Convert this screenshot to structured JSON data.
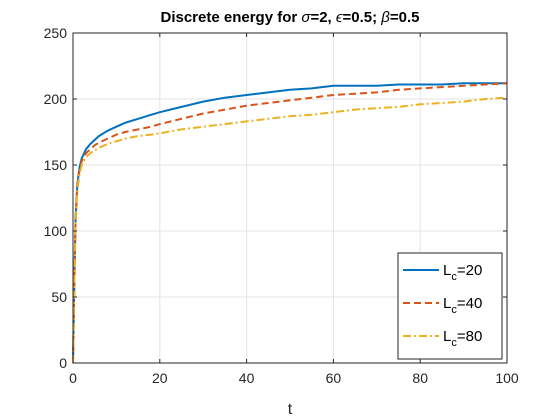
{
  "chart_data": {
    "type": "line",
    "title_parts": [
      "Discrete energy for ",
      "σ",
      "=2, ",
      "ϵ",
      "=0.5; ",
      "β",
      "=0.5"
    ],
    "xlabel": "t",
    "ylabel": "",
    "xlim": [
      0,
      100
    ],
    "ylim": [
      0,
      250
    ],
    "xticks": [
      0,
      20,
      40,
      60,
      80,
      100
    ],
    "yticks": [
      0,
      50,
      100,
      150,
      200,
      250
    ],
    "grid": true,
    "legend_position": "bottom-right",
    "series": [
      {
        "name_main": "L",
        "name_sub": "c",
        "name_rest": "=20",
        "color": "#0072BD",
        "style": "solid",
        "x": [
          0,
          0.3,
          0.6,
          1,
          1.5,
          2,
          3,
          4,
          5,
          6,
          8,
          10,
          12,
          15,
          18,
          20,
          25,
          30,
          35,
          40,
          45,
          50,
          55,
          60,
          65,
          70,
          75,
          80,
          85,
          90,
          95,
          100
        ],
        "y": [
          0,
          60,
          110,
          135,
          148,
          155,
          162,
          166,
          169,
          172,
          176,
          179,
          182,
          185,
          188,
          190,
          194,
          198,
          201,
          203,
          205,
          207,
          208,
          210,
          210,
          210,
          211,
          211,
          211,
          212,
          212,
          212
        ]
      },
      {
        "name_main": "L",
        "name_sub": "c",
        "name_rest": "=40",
        "color": "#D95319",
        "style": "dashed",
        "x": [
          0,
          0.3,
          0.6,
          1,
          1.5,
          2,
          3,
          4,
          5,
          6,
          8,
          10,
          12,
          15,
          18,
          20,
          25,
          30,
          35,
          40,
          45,
          50,
          55,
          60,
          65,
          70,
          75,
          80,
          85,
          90,
          95,
          100
        ],
        "y": [
          0,
          58,
          108,
          133,
          146,
          153,
          159,
          162,
          165,
          167,
          170,
          173,
          175,
          177,
          179,
          181,
          185,
          189,
          192,
          195,
          197,
          199,
          201,
          203,
          204,
          205,
          207,
          208,
          209,
          210,
          211,
          212
        ]
      },
      {
        "name_main": "L",
        "name_sub": "c",
        "name_rest": "=80",
        "color": "#EDB120",
        "style": "dashdot",
        "x": [
          0,
          0.3,
          0.6,
          1,
          1.5,
          2,
          3,
          4,
          5,
          6,
          8,
          10,
          12,
          15,
          18,
          20,
          25,
          30,
          35,
          40,
          45,
          50,
          55,
          60,
          65,
          70,
          75,
          80,
          85,
          90,
          95,
          100
        ],
        "y": [
          0,
          55,
          105,
          130,
          143,
          150,
          156,
          159,
          161,
          163,
          166,
          168,
          170,
          172,
          173,
          174,
          177,
          179,
          181,
          183,
          185,
          187,
          188,
          190,
          192,
          193,
          194,
          196,
          197,
          198,
          200,
          201
        ]
      }
    ]
  }
}
